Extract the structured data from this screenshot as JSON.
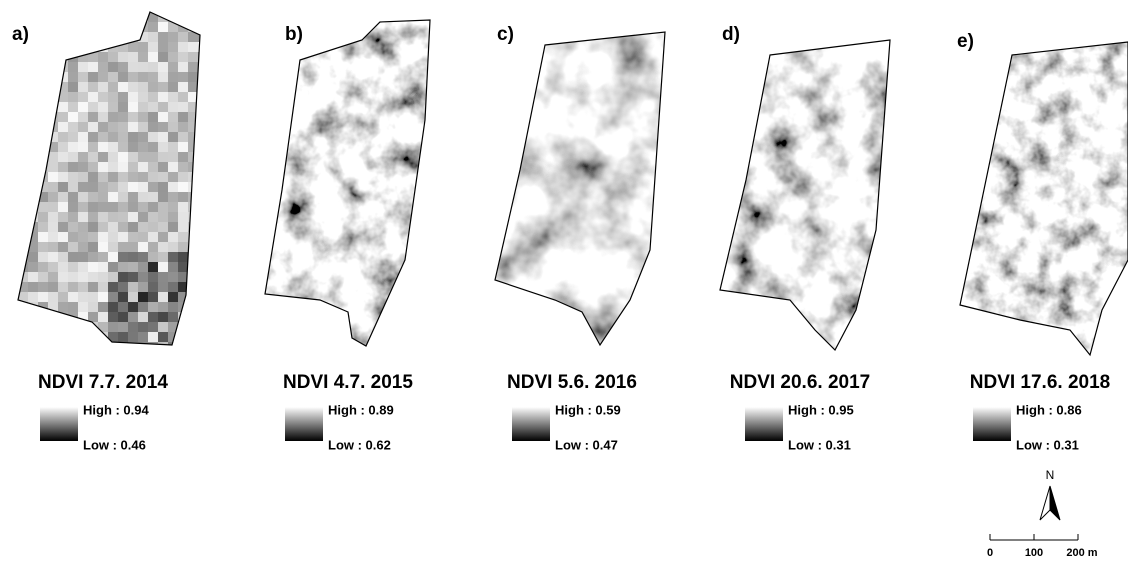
{
  "panels": [
    {
      "label": "a)",
      "title": "NDVI 7.7. 2014",
      "high": "High : 0.94",
      "low": "Low : 0.46"
    },
    {
      "label": "b)",
      "title": "NDVI 4.7. 2015",
      "high": "High : 0.89",
      "low": "Low : 0.62"
    },
    {
      "label": "c)",
      "title": "NDVI 5.6. 2016",
      "high": "High : 0.59",
      "low": "Low : 0.47"
    },
    {
      "label": "d)",
      "title": "NDVI 20.6. 2017",
      "high": "High : 0.95",
      "low": "Low : 0.31"
    },
    {
      "label": "e)",
      "title": "NDVI 17.6. 2018",
      "high": "High : 0.86",
      "low": "Low : 0.31"
    }
  ],
  "north": "N",
  "scale": {
    "labels": [
      "0",
      "100",
      "200 m"
    ]
  }
}
